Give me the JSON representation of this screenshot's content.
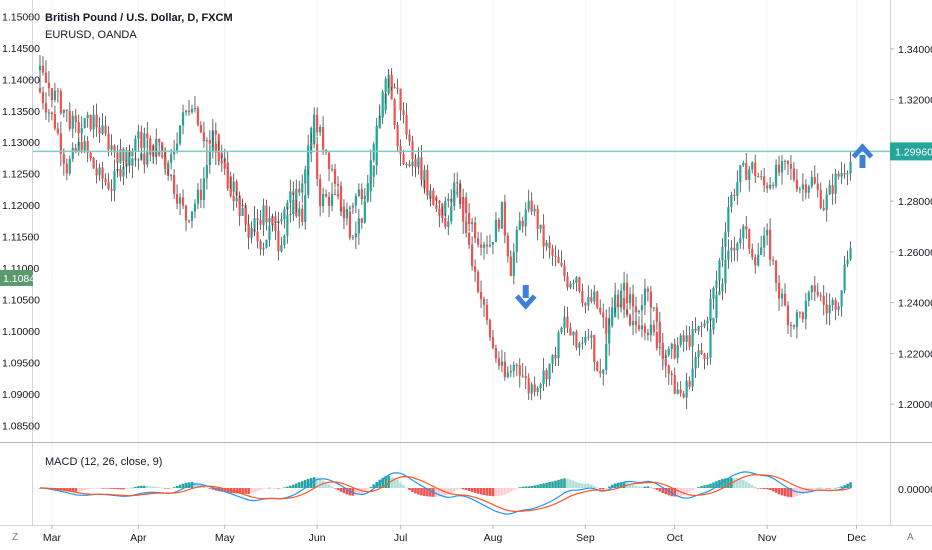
{
  "legend": {
    "main": "British Pound / U.S. Dollar, D, FXCM",
    "compare": "EURUSD, OANDA",
    "macd": "MACD (12, 26, close, 9)"
  },
  "corner_left": "Z",
  "corner_right": "A",
  "colors": {
    "up": "#26a69a",
    "down": "#ef5350",
    "macd_line": "#2196f3",
    "signal_line": "#ff5722",
    "resistance": "#80cbc4",
    "arrow": "#3d7fd9",
    "tag_left": "#5b9a6b",
    "tag_right": "#26a69a",
    "hist_up": "#26a69a",
    "hist_up_light": "#b2dfdb",
    "hist_down": "#ef5350",
    "hist_down_light": "#ffcdd2"
  },
  "chart_data": {
    "type": "candlestick",
    "left_axis": {
      "series": "EURUSD, OANDA",
      "ticks": [
        "1.15000",
        "1.14500",
        "1.14000",
        "1.13500",
        "1.13000",
        "1.12500",
        "1.12000",
        "1.11500",
        "1.11000",
        "1.10500",
        "1.10000",
        "1.09500",
        "1.09000",
        "1.08500"
      ],
      "ylim": [
        1.0825,
        1.1515
      ],
      "current_value": "1.10842"
    },
    "right_axis": {
      "series": "British Pound / U.S. Dollar, D, FXCM",
      "ticks": [
        "1.34000",
        "1.32000",
        "1.30000",
        "1.28000",
        "1.26000",
        "1.24000",
        "1.22000",
        "1.20000"
      ],
      "ylim": [
        1.1855,
        1.3565
      ],
      "current_value": "1.29960"
    },
    "resistance_level": 1.2996,
    "x_ticks": [
      "Mar",
      "Apr",
      "May",
      "Jun",
      "Jul",
      "Aug",
      "Sep",
      "Oct",
      "Nov",
      "Dec"
    ],
    "macd_axis": {
      "ticks": [
        "0.00000"
      ]
    },
    "annotations": [
      {
        "type": "arrow-down",
        "near": "Aug"
      },
      {
        "type": "arrow-up",
        "near": "Dec"
      }
    ],
    "gbpusd_anchors": [
      [
        0,
        1.33
      ],
      [
        7,
        1.318
      ],
      [
        12,
        1.308
      ],
      [
        18,
        1.312
      ],
      [
        23,
        1.303
      ],
      [
        28,
        1.296
      ],
      [
        33,
        1.305
      ],
      [
        38,
        1.3
      ],
      [
        43,
        1.292
      ],
      [
        47,
        1.31
      ],
      [
        51,
        1.32
      ],
      [
        55,
        1.306
      ],
      [
        60,
        1.296
      ],
      [
        65,
        1.283
      ],
      [
        70,
        1.268
      ],
      [
        75,
        1.276
      ],
      [
        80,
        1.264
      ],
      [
        84,
        1.273
      ],
      [
        88,
        1.29
      ],
      [
        92,
        1.312
      ],
      [
        96,
        1.3
      ],
      [
        100,
        1.285
      ],
      [
        104,
        1.268
      ],
      [
        108,
        1.27
      ],
      [
        112,
        1.3
      ],
      [
        116,
        1.33
      ],
      [
        120,
        1.323
      ],
      [
        124,
        1.302
      ],
      [
        128,
        1.292
      ],
      [
        132,
        1.28
      ],
      [
        136,
        1.272
      ],
      [
        140,
        1.284
      ],
      [
        144,
        1.262
      ],
      [
        148,
        1.242
      ],
      [
        152,
        1.222
      ],
      [
        156,
        1.21
      ],
      [
        160,
        1.217
      ],
      [
        164,
        1.206
      ],
      [
        168,
        1.21
      ],
      [
        172,
        1.217
      ],
      [
        176,
        1.233
      ],
      [
        180,
        1.222
      ],
      [
        184,
        1.23
      ],
      [
        188,
        1.21
      ],
      [
        192,
        1.238
      ],
      [
        196,
        1.245
      ],
      [
        200,
        1.236
      ],
      [
        204,
        1.247
      ],
      [
        208,
        1.225
      ],
      [
        212,
        1.208
      ],
      [
        216,
        1.203
      ],
      [
        220,
        1.218
      ],
      [
        224,
        1.222
      ],
      [
        228,
        1.245
      ],
      [
        232,
        1.262
      ],
      [
        236,
        1.268
      ],
      [
        240,
        1.258
      ],
      [
        244,
        1.265
      ],
      [
        248,
        1.244
      ],
      [
        252,
        1.232
      ],
      [
        256,
        1.236
      ],
      [
        260,
        1.246
      ],
      [
        264,
        1.237
      ],
      [
        268,
        1.242
      ],
      [
        272,
        1.265
      ]
    ],
    "eurusd_anchors": [
      [
        0,
        1.138
      ],
      [
        5,
        1.133
      ],
      [
        9,
        1.126
      ],
      [
        14,
        1.13
      ],
      [
        19,
        1.125
      ],
      [
        24,
        1.123
      ],
      [
        29,
        1.128
      ],
      [
        34,
        1.127
      ],
      [
        40,
        1.13
      ],
      [
        45,
        1.123
      ],
      [
        49,
        1.118
      ],
      [
        54,
        1.122
      ],
      [
        58,
        1.131
      ],
      [
        62,
        1.126
      ],
      [
        66,
        1.121
      ],
      [
        71,
        1.115
      ],
      [
        75,
        1.114
      ],
      [
        79,
        1.118
      ],
      [
        84,
        1.121
      ],
      [
        88,
        1.118
      ],
      [
        91,
        1.132
      ],
      [
        94,
        1.121
      ],
      [
        98,
        1.121
      ],
      [
        103,
        1.119
      ],
      [
        107,
        1.122
      ],
      [
        111,
        1.124
      ],
      [
        114,
        1.134
      ],
      [
        117,
        1.139
      ],
      [
        121,
        1.128
      ],
      [
        126,
        1.127
      ],
      [
        131,
        1.121
      ],
      [
        135,
        1.119
      ],
      [
        139,
        1.123
      ],
      [
        143,
        1.119
      ],
      [
        147,
        1.115
      ],
      [
        151,
        1.114
      ],
      [
        155,
        1.119
      ],
      [
        158,
        1.11
      ],
      [
        161,
        1.117
      ],
      [
        165,
        1.12
      ],
      [
        169,
        1.114
      ],
      [
        173,
        1.111
      ],
      [
        177,
        1.108
      ],
      [
        180,
        1.109
      ],
      [
        183,
        1.104
      ],
      [
        186,
        1.105
      ],
      [
        190,
        1.1
      ],
      [
        194,
        1.105
      ],
      [
        198,
        1.1
      ],
      [
        202,
        1.102
      ],
      [
        206,
        1.099
      ],
      [
        211,
        1.096
      ],
      [
        215,
        1.098
      ],
      [
        219,
        1.099
      ],
      [
        223,
        1.101
      ],
      [
        227,
        1.108
      ],
      [
        231,
        1.12
      ],
      [
        235,
        1.125
      ],
      [
        239,
        1.126
      ],
      [
        243,
        1.123
      ],
      [
        247,
        1.125
      ],
      [
        251,
        1.126
      ],
      [
        255,
        1.123
      ],
      [
        259,
        1.124
      ],
      [
        263,
        1.12
      ],
      [
        267,
        1.124
      ],
      [
        270,
        1.126
      ],
      [
        272,
        1.127
      ]
    ]
  }
}
